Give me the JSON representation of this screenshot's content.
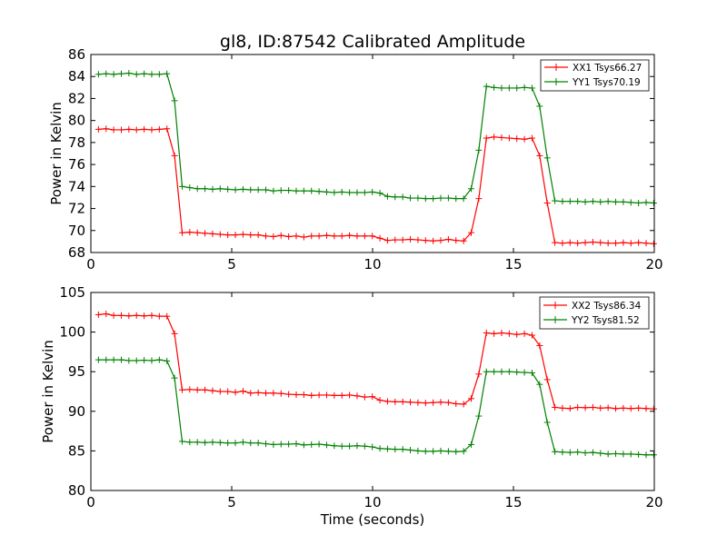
{
  "chart_data": [
    {
      "type": "line",
      "title": "gl8, ID:87542 Calibrated Amplitude",
      "xlabel": "",
      "ylabel": "Power in Kelvin",
      "xlim": [
        0,
        20
      ],
      "ylim": [
        68,
        86
      ],
      "xticks": [
        0,
        5,
        10,
        15,
        20
      ],
      "yticks": [
        68,
        70,
        72,
        74,
        76,
        78,
        80,
        82,
        84,
        86
      ],
      "grid": false,
      "legend_position": "top-right",
      "x": [
        0.27,
        0.54,
        0.81,
        1.08,
        1.35,
        1.62,
        1.89,
        2.16,
        2.43,
        2.7,
        2.97,
        3.24,
        3.51,
        3.78,
        4.05,
        4.32,
        4.59,
        4.86,
        5.13,
        5.4,
        5.67,
        5.94,
        6.21,
        6.48,
        6.75,
        7.02,
        7.29,
        7.56,
        7.83,
        8.1,
        8.37,
        8.64,
        8.91,
        9.18,
        9.45,
        9.72,
        9.99,
        10.26,
        10.53,
        10.8,
        11.07,
        11.34,
        11.61,
        11.88,
        12.15,
        12.42,
        12.69,
        12.96,
        13.23,
        13.5,
        13.77,
        14.04,
        14.31,
        14.58,
        14.85,
        15.12,
        15.39,
        15.66,
        15.93,
        16.2,
        16.47,
        16.74,
        17.01,
        17.28,
        17.55,
        17.82,
        18.09,
        18.36,
        18.63,
        18.9,
        19.17,
        19.44,
        19.71,
        19.98
      ],
      "series": [
        {
          "name": "XX1 Tsys66.27",
          "color": "#ff0000",
          "values": [
            79.2,
            79.25,
            79.15,
            79.15,
            79.2,
            79.15,
            79.2,
            79.15,
            79.2,
            79.25,
            76.8,
            69.8,
            69.85,
            69.8,
            69.75,
            69.7,
            69.65,
            69.6,
            69.6,
            69.65,
            69.6,
            69.6,
            69.5,
            69.45,
            69.55,
            69.45,
            69.5,
            69.4,
            69.5,
            69.5,
            69.55,
            69.5,
            69.5,
            69.55,
            69.5,
            69.5,
            69.5,
            69.3,
            69.1,
            69.15,
            69.15,
            69.2,
            69.15,
            69.1,
            69.05,
            69.1,
            69.2,
            69.1,
            69.05,
            69.8,
            72.9,
            78.4,
            78.5,
            78.45,
            78.4,
            78.35,
            78.3,
            78.4,
            76.8,
            72.5,
            68.9,
            68.85,
            68.9,
            68.85,
            68.9,
            68.95,
            68.9,
            68.85,
            68.85,
            68.9,
            68.85,
            68.9,
            68.85,
            68.8
          ]
        },
        {
          "name": "YY1 Tsys70.19",
          "color": "#008000",
          "values": [
            84.2,
            84.25,
            84.2,
            84.25,
            84.3,
            84.2,
            84.25,
            84.2,
            84.2,
            84.25,
            81.8,
            74.0,
            73.9,
            73.8,
            73.8,
            73.75,
            73.8,
            73.75,
            73.7,
            73.75,
            73.7,
            73.7,
            73.7,
            73.6,
            73.65,
            73.65,
            73.6,
            73.6,
            73.6,
            73.55,
            73.5,
            73.45,
            73.5,
            73.45,
            73.45,
            73.45,
            73.5,
            73.4,
            73.1,
            73.05,
            73.05,
            72.95,
            72.95,
            72.9,
            72.9,
            72.95,
            72.95,
            72.9,
            72.9,
            73.8,
            77.3,
            83.1,
            83.0,
            82.95,
            82.95,
            82.95,
            83.0,
            82.95,
            81.3,
            76.6,
            72.7,
            72.65,
            72.65,
            72.65,
            72.6,
            72.65,
            72.6,
            72.65,
            72.6,
            72.6,
            72.55,
            72.5,
            72.55,
            72.5
          ]
        }
      ]
    },
    {
      "type": "line",
      "title": "",
      "xlabel": "Time (seconds)",
      "ylabel": "Power in Kelvin",
      "xlim": [
        0,
        20
      ],
      "ylim": [
        80,
        105
      ],
      "xticks": [
        0,
        5,
        10,
        15,
        20
      ],
      "yticks": [
        80,
        85,
        90,
        95,
        100,
        105
      ],
      "grid": false,
      "legend_position": "top-right",
      "x": [
        0.27,
        0.54,
        0.81,
        1.08,
        1.35,
        1.62,
        1.89,
        2.16,
        2.43,
        2.7,
        2.97,
        3.24,
        3.51,
        3.78,
        4.05,
        4.32,
        4.59,
        4.86,
        5.13,
        5.4,
        5.67,
        5.94,
        6.21,
        6.48,
        6.75,
        7.02,
        7.29,
        7.56,
        7.83,
        8.1,
        8.37,
        8.64,
        8.91,
        9.18,
        9.45,
        9.72,
        9.99,
        10.26,
        10.53,
        10.8,
        11.07,
        11.34,
        11.61,
        11.88,
        12.15,
        12.42,
        12.69,
        12.96,
        13.23,
        13.5,
        13.77,
        14.04,
        14.31,
        14.58,
        14.85,
        15.12,
        15.39,
        15.66,
        15.93,
        16.2,
        16.47,
        16.74,
        17.01,
        17.28,
        17.55,
        17.82,
        18.09,
        18.36,
        18.63,
        18.9,
        19.17,
        19.44,
        19.71,
        19.98
      ],
      "series": [
        {
          "name": "XX2 Tsys86.34",
          "color": "#ff0000",
          "values": [
            102.2,
            102.3,
            102.1,
            102.1,
            102.05,
            102.1,
            102.05,
            102.1,
            102.0,
            102.0,
            99.8,
            92.7,
            92.75,
            92.7,
            92.7,
            92.6,
            92.5,
            92.5,
            92.4,
            92.55,
            92.3,
            92.35,
            92.3,
            92.3,
            92.25,
            92.15,
            92.1,
            92.1,
            92.0,
            92.05,
            92.05,
            92.0,
            92.0,
            92.05,
            91.95,
            91.8,
            91.85,
            91.4,
            91.25,
            91.2,
            91.2,
            91.15,
            91.1,
            91.05,
            91.1,
            91.15,
            91.1,
            90.95,
            90.9,
            91.6,
            94.7,
            99.9,
            99.8,
            99.9,
            99.8,
            99.7,
            99.8,
            99.6,
            98.3,
            94.0,
            90.5,
            90.4,
            90.35,
            90.5,
            90.45,
            90.5,
            90.4,
            90.45,
            90.35,
            90.4,
            90.35,
            90.4,
            90.35,
            90.3
          ]
        },
        {
          "name": "YY2 Tsys81.52",
          "color": "#008000",
          "values": [
            96.5,
            96.5,
            96.5,
            96.5,
            96.4,
            96.4,
            96.45,
            96.4,
            96.5,
            96.35,
            94.2,
            86.2,
            86.1,
            86.1,
            86.05,
            86.1,
            86.05,
            86.0,
            86.0,
            86.1,
            86.0,
            86.0,
            85.9,
            85.8,
            85.85,
            85.85,
            85.9,
            85.75,
            85.8,
            85.85,
            85.75,
            85.65,
            85.6,
            85.6,
            85.65,
            85.6,
            85.5,
            85.3,
            85.25,
            85.2,
            85.2,
            85.1,
            85.0,
            84.95,
            84.95,
            85.0,
            84.95,
            84.9,
            84.95,
            85.8,
            89.4,
            95.0,
            95.0,
            95.0,
            95.0,
            94.95,
            94.9,
            94.85,
            93.4,
            88.6,
            84.9,
            84.85,
            84.8,
            84.85,
            84.75,
            84.8,
            84.7,
            84.6,
            84.65,
            84.6,
            84.6,
            84.55,
            84.5,
            84.5
          ]
        }
      ]
    }
  ]
}
